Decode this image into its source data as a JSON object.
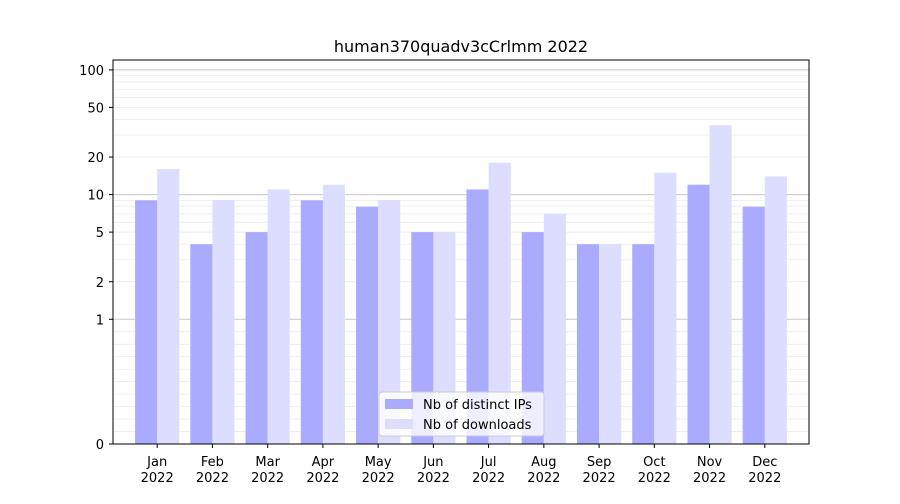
{
  "chart_data": {
    "type": "bar",
    "title": "human370quadv3cCrlmm 2022",
    "xlabel": "",
    "ylabel": "",
    "y_scale": "symlog",
    "ylim": [
      0,
      120
    ],
    "yticks": [
      0,
      1,
      2,
      5,
      10,
      20,
      50,
      100
    ],
    "categories": [
      [
        "Jan",
        "2022"
      ],
      [
        "Feb",
        "2022"
      ],
      [
        "Mar",
        "2022"
      ],
      [
        "Apr",
        "2022"
      ],
      [
        "May",
        "2022"
      ],
      [
        "Jun",
        "2022"
      ],
      [
        "Jul",
        "2022"
      ],
      [
        "Aug",
        "2022"
      ],
      [
        "Sep",
        "2022"
      ],
      [
        "Oct",
        "2022"
      ],
      [
        "Nov",
        "2022"
      ],
      [
        "Dec",
        "2022"
      ]
    ],
    "series": [
      {
        "name": "Nb of distinct IPs",
        "color": "#aaaaff",
        "values": [
          9,
          4,
          5,
          9,
          8,
          5,
          11,
          5,
          4,
          4,
          12,
          8
        ]
      },
      {
        "name": "Nb of downloads",
        "color": "#ddddff",
        "values": [
          16,
          9,
          11,
          12,
          9,
          5,
          18,
          7,
          4,
          15,
          36,
          14
        ]
      }
    ],
    "grid": true,
    "legend_position": "bottom-center"
  }
}
